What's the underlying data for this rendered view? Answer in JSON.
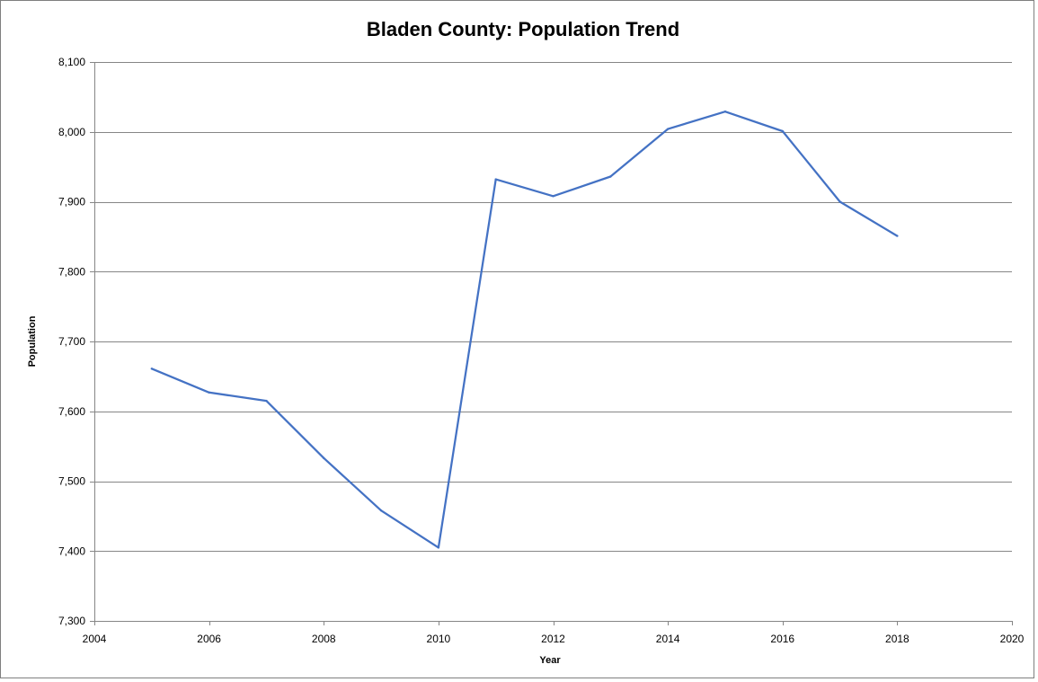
{
  "chart_data": {
    "type": "line",
    "title": "Bladen County: Population Trend",
    "xlabel": "Year",
    "ylabel": "Population",
    "xlim": [
      2004,
      2020
    ],
    "ylim": [
      7300,
      8100
    ],
    "x_ticks": [
      2004,
      2006,
      2008,
      2010,
      2012,
      2014,
      2016,
      2018,
      2020
    ],
    "x_tick_labels": [
      "2004",
      "2006",
      "2008",
      "2010",
      "2012",
      "2014",
      "2016",
      "2018",
      "2020"
    ],
    "y_ticks": [
      7300,
      7400,
      7500,
      7600,
      7700,
      7800,
      7900,
      8000,
      8100
    ],
    "y_tick_labels": [
      "7,300",
      "7,400",
      "7,500",
      "7,600",
      "7,700",
      "7,800",
      "7,900",
      "8,000",
      "8,100"
    ],
    "grid": "horizontal",
    "legend": "none",
    "series": [
      {
        "color": "#4472C4",
        "x": [
          2005,
          2006,
          2007,
          2008,
          2009,
          2010,
          2011,
          2012,
          2013,
          2014,
          2015,
          2016,
          2017,
          2018
        ],
        "y": [
          7661,
          7627,
          7615,
          7533,
          7458,
          7405,
          7932,
          7908,
          7936,
          8004,
          8029,
          8001,
          7900,
          7851
        ]
      }
    ]
  }
}
